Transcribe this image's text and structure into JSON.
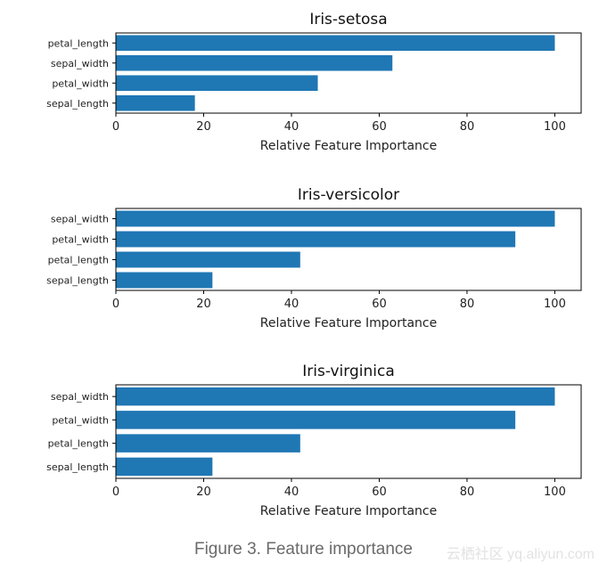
{
  "chart_data": [
    {
      "type": "bar",
      "orientation": "horizontal",
      "title": "Iris-setosa",
      "categories": [
        "petal_length",
        "sepal_width",
        "petal_width",
        "sepal_length"
      ],
      "values": [
        100,
        63,
        46,
        18
      ],
      "xlabel": "Relative Feature Importance",
      "ylabel": "",
      "xlim": [
        0,
        106
      ],
      "xticks": [
        0,
        20,
        40,
        60,
        80,
        100
      ],
      "color": "#1f77b4",
      "grid": false
    },
    {
      "type": "bar",
      "orientation": "horizontal",
      "title": "Iris-versicolor",
      "categories": [
        "sepal_width",
        "petal_width",
        "petal_length",
        "sepal_length"
      ],
      "values": [
        100,
        91,
        42,
        22
      ],
      "xlabel": "Relative Feature Importance",
      "ylabel": "",
      "xlim": [
        0,
        106
      ],
      "xticks": [
        0,
        20,
        40,
        60,
        80,
        100
      ],
      "color": "#1f77b4",
      "grid": false
    },
    {
      "type": "bar",
      "orientation": "horizontal",
      "title": "Iris-virginica",
      "categories": [
        "sepal_width",
        "petal_width",
        "petal_length",
        "sepal_length"
      ],
      "values": [
        100,
        91,
        42,
        22
      ],
      "xlabel": "Relative Feature Importance",
      "ylabel": "",
      "xlim": [
        0,
        106
      ],
      "xticks": [
        0,
        20,
        40,
        60,
        80,
        100
      ],
      "color": "#1f77b4",
      "grid": false
    }
  ],
  "caption": "Figure 3. Feature importance",
  "watermark": "云栖社区 yq.aliyun.com"
}
